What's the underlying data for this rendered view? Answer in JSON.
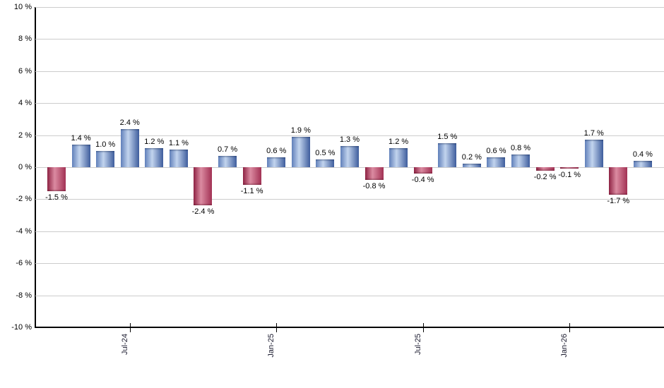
{
  "chart_data": {
    "type": "bar",
    "title": "",
    "xlabel": "",
    "ylabel": "",
    "grid": true,
    "legend": false,
    "ylim": [
      -10,
      10
    ],
    "y_ticks": [
      {
        "value": 10,
        "label": "10 %"
      },
      {
        "value": 8,
        "label": "8 %"
      },
      {
        "value": 6,
        "label": "6 %"
      },
      {
        "value": 4,
        "label": "4 %"
      },
      {
        "value": 2,
        "label": "2 %"
      },
      {
        "value": 0,
        "label": "0 %"
      },
      {
        "value": -2,
        "label": "-2 %"
      },
      {
        "value": -4,
        "label": "-4 %"
      },
      {
        "value": -6,
        "label": "-6 %"
      },
      {
        "value": -8,
        "label": "-8 %"
      },
      {
        "value": -10,
        "label": "-10 %"
      }
    ],
    "values": [
      -1.5,
      1.4,
      1.0,
      2.4,
      1.2,
      1.1,
      -2.4,
      0.7,
      -1.1,
      0.6,
      1.9,
      0.5,
      1.3,
      -0.8,
      1.2,
      -0.4,
      1.5,
      0.2,
      0.6,
      0.8,
      -0.2,
      -0.1,
      1.7,
      -1.7,
      0.4
    ],
    "value_labels": [
      "-1.5 %",
      "1.4 %",
      "1.0 %",
      "2.4 %",
      "1.2 %",
      "1.1 %",
      "-2.4 %",
      "0.7 %",
      "-1.1 %",
      "0.6 %",
      "1.9 %",
      "0.5 %",
      "1.3 %",
      "-0.8 %",
      "1.2 %",
      "-0.4 %",
      "1.5 %",
      "0.2 %",
      "0.6 %",
      "0.8 %",
      "-0.2 %",
      "-0.1 %",
      "1.7 %",
      "-1.7 %",
      "0.4 %"
    ],
    "x_ticks": [
      {
        "bar_index": 3,
        "label": "Jul-24"
      },
      {
        "bar_index": 9,
        "label": "Jan-25"
      },
      {
        "bar_index": 15,
        "label": "Jul-25"
      },
      {
        "bar_index": 21,
        "label": "Jan-26"
      }
    ],
    "colors": {
      "positive_edge_left": "#6080BA",
      "positive_highlight": "#C2D4EE",
      "positive_edge_right": "#3E5D9D",
      "negative_edge_left": "#8E2243",
      "negative_highlight": "#DB8BA1",
      "negative_edge_right": "#A23154",
      "gridline": "#CCCCCC",
      "axis": "#000000",
      "label_text": "#000000"
    }
  }
}
